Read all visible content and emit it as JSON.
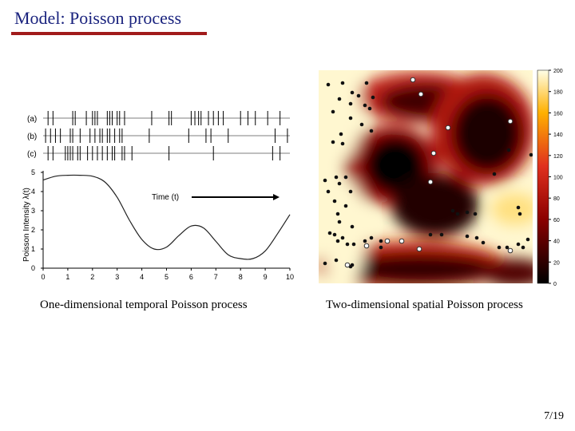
{
  "slide": {
    "title": "Model: Poisson process",
    "page": "7/19"
  },
  "captions": {
    "left": "One-dimensional temporal Poisson process",
    "right": "Two-dimensional spatial Poisson process"
  },
  "colors": {
    "title": "#1a237e",
    "title_rule": "#a11b1b"
  },
  "chart_data": [
    {
      "type": "line",
      "xlabel": "Time (t)",
      "ylabel": "Poisson Intensity λ(t)",
      "xlim": [
        0,
        10
      ],
      "ylim": [
        0,
        5
      ],
      "x_ticks": [
        "0",
        "1",
        "2",
        "3",
        "4",
        "5",
        "6",
        "7",
        "8",
        "9",
        "10"
      ],
      "y_ticks": [
        "0",
        "1",
        "2",
        "3",
        "4",
        "5"
      ],
      "series": [
        {
          "x": [
            0,
            0.5,
            1,
            1.5,
            2,
            2.5,
            3,
            3.5,
            4,
            4.5,
            5,
            5.5,
            6,
            6.5,
            7,
            7.5,
            8,
            8.5,
            9,
            9.5,
            10
          ],
          "values": [
            4.6,
            4.8,
            4.85,
            4.85,
            4.8,
            4.5,
            3.7,
            2.5,
            1.5,
            1.0,
            1.1,
            1.7,
            2.2,
            2.1,
            1.4,
            0.7,
            0.5,
            0.5,
            0.9,
            1.8,
            2.8
          ]
        }
      ],
      "event_rows": [
        {
          "label": "(a)",
          "events": [
            0.2,
            0.4,
            1.2,
            1.3,
            1.75,
            2.0,
            2.1,
            2.2,
            2.6,
            2.7,
            2.8,
            3.0,
            3.1,
            3.3,
            4.4,
            5.1,
            5.2,
            6.0,
            6.15,
            6.3,
            6.4,
            6.7,
            6.9,
            7.1,
            7.3,
            8.0,
            8.3,
            8.6,
            9.1,
            9.6
          ]
        },
        {
          "label": "(b)",
          "events": [
            0.1,
            0.3,
            0.5,
            0.7,
            1.1,
            1.2,
            1.5,
            1.9,
            2.1,
            2.3,
            2.4,
            2.6,
            2.7,
            2.9,
            3.1,
            3.2,
            4.3,
            5.9,
            6.6,
            6.8,
            7.5,
            9.4,
            9.9
          ]
        },
        {
          "label": "(c)",
          "events": [
            0.2,
            0.4,
            0.9,
            1.0,
            1.1,
            1.2,
            1.4,
            1.5,
            1.8,
            2.0,
            2.2,
            2.4,
            2.6,
            2.8,
            2.9,
            3.2,
            3.3,
            3.6,
            5.1,
            6.9,
            9.3,
            9.6
          ]
        }
      ]
    },
    {
      "type": "heatmap",
      "colorbar_ticks": [
        "200",
        "180",
        "160",
        "140",
        "120",
        "100",
        "80",
        "60",
        "40",
        "20",
        "0"
      ],
      "colorbar_range": [
        0,
        200
      ]
    }
  ]
}
